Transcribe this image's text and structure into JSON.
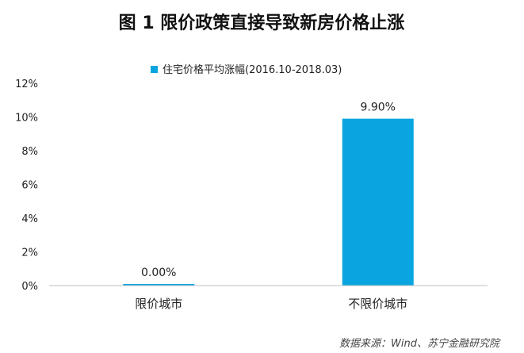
{
  "title": "图 1 限价政策直接导致新房价格止涨",
  "source": "数据来源：Wind、苏宁金融研究院",
  "colors": {
    "bar": "#0aa5e0",
    "axis": "#bfbfbf",
    "text": "#222222"
  },
  "chart_data": {
    "type": "bar",
    "categories": [
      "限价城市",
      "不限价城市"
    ],
    "series": [
      {
        "name": "住宅价格平均涨幅(2016.10-2018.03)",
        "values": [
          0.0,
          9.9
        ]
      }
    ],
    "value_labels": [
      "0.00%",
      "9.90%"
    ],
    "ylim": [
      0,
      12
    ],
    "yticks": [
      0,
      2,
      4,
      6,
      8,
      10,
      12
    ],
    "ytick_labels": [
      "0%",
      "2%",
      "4%",
      "6%",
      "8%",
      "10%",
      "12%"
    ],
    "legend_position": "top-center",
    "grid": false
  }
}
